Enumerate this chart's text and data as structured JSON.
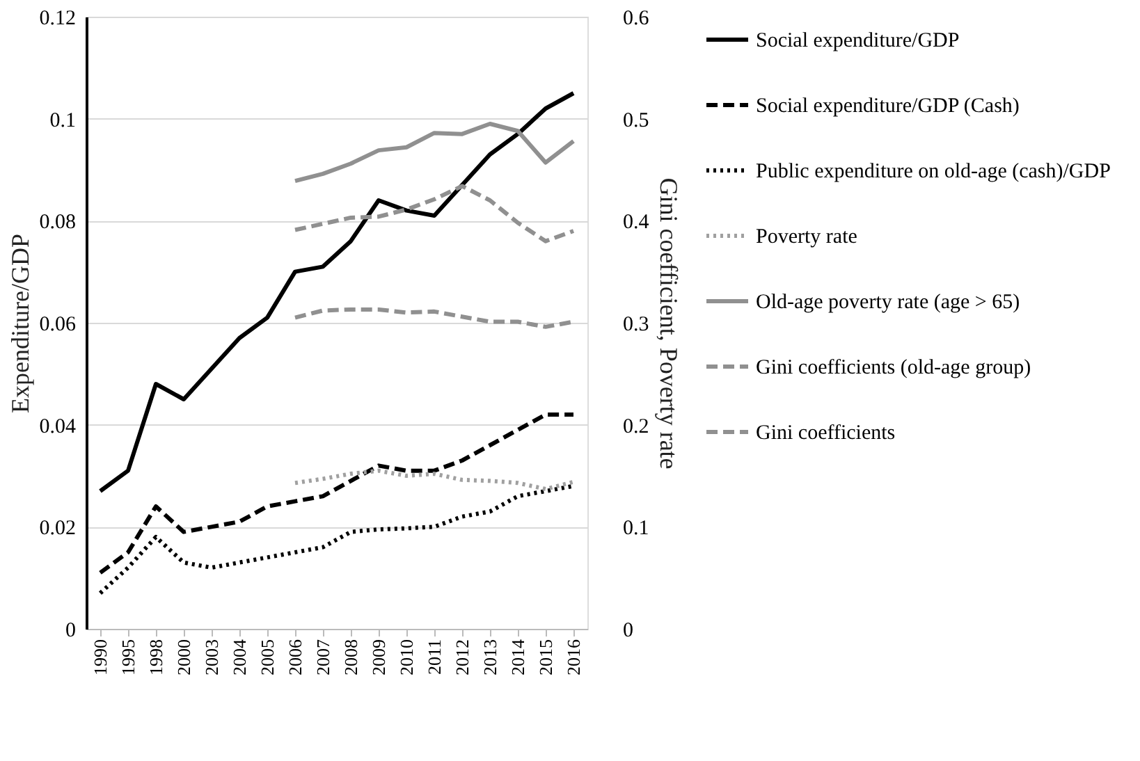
{
  "chart_data": {
    "type": "line",
    "ylabel": "Expenditure/GDP",
    "y2label": "Gini coefficient, Poverty rate",
    "categories": [
      "1990",
      "1995",
      "1998",
      "2000",
      "2003",
      "2004",
      "2005",
      "2006",
      "2007",
      "2008",
      "2009",
      "2010",
      "2011",
      "2012",
      "2013",
      "2014",
      "2015",
      "2016"
    ],
    "series": [
      {
        "name": "Social expenditure/GDP",
        "color": "#000000",
        "line_style": "solid",
        "values": [
          0.027,
          0.031,
          0.048,
          0.045,
          0.051,
          0.057,
          0.061,
          0.07,
          0.071,
          0.076,
          0.084,
          0.082,
          0.081,
          0.087,
          0.093,
          0.097,
          0.102,
          0.105
        ]
      },
      {
        "name": "Social expenditure/GDP (Cash)",
        "color": "#000000",
        "line_style": "dashed",
        "values": [
          0.011,
          0.015,
          0.024,
          0.019,
          0.02,
          0.021,
          0.024,
          0.025,
          0.026,
          0.029,
          0.032,
          0.031,
          0.031,
          0.033,
          0.036,
          0.039,
          0.042,
          0.042
        ]
      },
      {
        "name": "Public expenditure on old-age (cash)/GDP",
        "color": "#000000",
        "line_style": "dotted",
        "values": [
          0.007,
          0.012,
          0.018,
          0.013,
          0.012,
          0.013,
          0.014,
          0.015,
          0.016,
          0.019,
          0.0195,
          0.0197,
          0.02,
          0.022,
          0.023,
          0.026,
          0.027,
          0.028
        ]
      },
      {
        "name": "Poverty rate",
        "color": "#a0a0a0",
        "line_style": "dotted",
        "axis": "y2",
        "values": [
          null,
          null,
          null,
          null,
          null,
          null,
          null,
          0.143,
          0.147,
          0.152,
          0.155,
          0.15,
          0.152,
          0.146,
          0.145,
          0.143,
          0.137,
          0.144
        ]
      },
      {
        "name": "Old-age poverty rate (age > 65)",
        "color": "#909090",
        "line_style": "solid",
        "axis": "y2",
        "values": [
          null,
          null,
          null,
          null,
          null,
          null,
          null,
          0.439,
          0.446,
          0.456,
          0.469,
          0.472,
          0.486,
          0.485,
          0.495,
          0.488,
          0.457,
          0.478
        ]
      },
      {
        "name": "Gini coefficients (old-age group)",
        "color": "#909090",
        "line_style": "dashed",
        "axis": "y2",
        "values": [
          null,
          null,
          null,
          null,
          null,
          null,
          null,
          0.391,
          0.397,
          0.403,
          0.404,
          0.411,
          0.421,
          0.434,
          0.42,
          0.398,
          0.38,
          0.39
        ]
      },
      {
        "name": "Gini coefficients",
        "color": "#909090",
        "line_style": "dashed",
        "axis": "y2",
        "values": [
          null,
          null,
          null,
          null,
          null,
          null,
          null,
          0.305,
          0.312,
          0.313,
          0.313,
          0.31,
          0.311,
          0.306,
          0.301,
          0.301,
          0.296,
          0.301
        ]
      }
    ],
    "ylim": [
      0,
      0.12
    ],
    "yticks": [
      0,
      0.02,
      0.04,
      0.06,
      0.08,
      0.1,
      0.12
    ],
    "y2lim": [
      0,
      0.6
    ],
    "y2ticks": [
      0,
      0.1,
      0.2,
      0.3,
      0.4,
      0.5,
      0.6
    ],
    "grid": "y",
    "legend": "right",
    "marker": "none"
  }
}
